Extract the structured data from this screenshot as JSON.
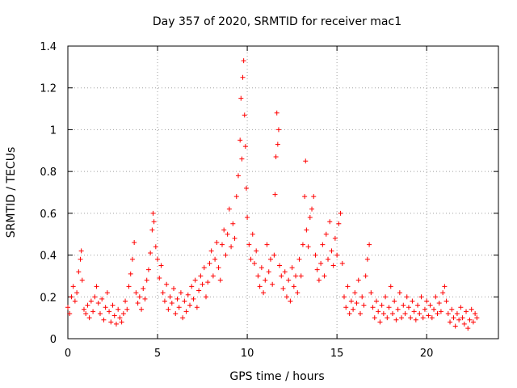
{
  "chart_data": {
    "type": "scatter",
    "title": "Day 357 of 2020, SRMTID for receiver mac1",
    "xlabel": "GPS time / hours",
    "ylabel": "SRMTID / TECUs",
    "xlim": [
      0,
      24
    ],
    "ylim": [
      0,
      1.4
    ],
    "xticks": [
      0,
      5,
      10,
      15,
      20
    ],
    "xtick_labels": [
      "0",
      "5",
      "10",
      "15",
      "20"
    ],
    "yticks": [
      0,
      0.2,
      0.4,
      0.6,
      0.8,
      1.0,
      1.2,
      1.4
    ],
    "ytick_labels": [
      "0",
      "0.2",
      "0.4",
      "0.6",
      "0.8",
      "1",
      "1.2",
      "1.4"
    ],
    "grid": true,
    "marker": "+",
    "color": "#ff0000",
    "series": [
      {
        "name": "mac1",
        "points": [
          [
            0.0,
            0.15
          ],
          [
            0.1,
            0.12
          ],
          [
            0.2,
            0.2
          ],
          [
            0.3,
            0.25
          ],
          [
            0.4,
            0.18
          ],
          [
            0.5,
            0.22
          ],
          [
            0.6,
            0.32
          ],
          [
            0.7,
            0.38
          ],
          [
            0.75,
            0.42
          ],
          [
            0.8,
            0.28
          ],
          [
            0.9,
            0.14
          ],
          [
            1.0,
            0.12
          ],
          [
            1.1,
            0.16
          ],
          [
            1.2,
            0.1
          ],
          [
            1.3,
            0.18
          ],
          [
            1.4,
            0.13
          ],
          [
            1.5,
            0.2
          ],
          [
            1.6,
            0.25
          ],
          [
            1.7,
            0.17
          ],
          [
            1.8,
            0.12
          ],
          [
            1.9,
            0.19
          ],
          [
            2.0,
            0.09
          ],
          [
            2.1,
            0.15
          ],
          [
            2.2,
            0.22
          ],
          [
            2.3,
            0.13
          ],
          [
            2.4,
            0.08
          ],
          [
            2.5,
            0.16
          ],
          [
            2.6,
            0.11
          ],
          [
            2.7,
            0.07
          ],
          [
            2.8,
            0.14
          ],
          [
            2.9,
            0.1
          ],
          [
            3.0,
            0.08
          ],
          [
            3.1,
            0.12
          ],
          [
            3.2,
            0.18
          ],
          [
            3.3,
            0.14
          ],
          [
            3.4,
            0.25
          ],
          [
            3.5,
            0.31
          ],
          [
            3.6,
            0.38
          ],
          [
            3.7,
            0.46
          ],
          [
            3.8,
            0.22
          ],
          [
            3.9,
            0.17
          ],
          [
            4.0,
            0.2
          ],
          [
            4.1,
            0.14
          ],
          [
            4.2,
            0.24
          ],
          [
            4.3,
            0.19
          ],
          [
            4.4,
            0.28
          ],
          [
            4.5,
            0.33
          ],
          [
            4.6,
            0.41
          ],
          [
            4.7,
            0.52
          ],
          [
            4.75,
            0.6
          ],
          [
            4.8,
            0.56
          ],
          [
            4.9,
            0.44
          ],
          [
            5.0,
            0.38
          ],
          [
            5.1,
            0.29
          ],
          [
            5.2,
            0.35
          ],
          [
            5.3,
            0.22
          ],
          [
            5.4,
            0.18
          ],
          [
            5.5,
            0.26
          ],
          [
            5.6,
            0.14
          ],
          [
            5.7,
            0.2
          ],
          [
            5.8,
            0.17
          ],
          [
            5.9,
            0.24
          ],
          [
            6.0,
            0.12
          ],
          [
            6.1,
            0.19
          ],
          [
            6.2,
            0.15
          ],
          [
            6.3,
            0.22
          ],
          [
            6.4,
            0.1
          ],
          [
            6.5,
            0.18
          ],
          [
            6.6,
            0.13
          ],
          [
            6.7,
            0.21
          ],
          [
            6.8,
            0.16
          ],
          [
            6.9,
            0.25
          ],
          [
            7.0,
            0.19
          ],
          [
            7.1,
            0.28
          ],
          [
            7.2,
            0.15
          ],
          [
            7.3,
            0.23
          ],
          [
            7.4,
            0.3
          ],
          [
            7.5,
            0.26
          ],
          [
            7.6,
            0.34
          ],
          [
            7.7,
            0.2
          ],
          [
            7.8,
            0.27
          ],
          [
            7.9,
            0.36
          ],
          [
            8.0,
            0.42
          ],
          [
            8.1,
            0.3
          ],
          [
            8.2,
            0.38
          ],
          [
            8.3,
            0.46
          ],
          [
            8.4,
            0.34
          ],
          [
            8.5,
            0.28
          ],
          [
            8.6,
            0.45
          ],
          [
            8.7,
            0.52
          ],
          [
            8.8,
            0.4
          ],
          [
            8.9,
            0.5
          ],
          [
            9.0,
            0.62
          ],
          [
            9.1,
            0.44
          ],
          [
            9.2,
            0.55
          ],
          [
            9.3,
            0.48
          ],
          [
            9.4,
            0.68
          ],
          [
            9.5,
            0.78
          ],
          [
            9.6,
            0.95
          ],
          [
            9.65,
            1.15
          ],
          [
            9.7,
            0.86
          ],
          [
            9.75,
            1.25
          ],
          [
            9.8,
            1.33
          ],
          [
            9.85,
            1.07
          ],
          [
            9.9,
            0.92
          ],
          [
            9.95,
            0.72
          ],
          [
            10.0,
            0.58
          ],
          [
            10.1,
            0.45
          ],
          [
            10.2,
            0.38
          ],
          [
            10.3,
            0.5
          ],
          [
            10.4,
            0.36
          ],
          [
            10.5,
            0.42
          ],
          [
            10.6,
            0.3
          ],
          [
            10.7,
            0.25
          ],
          [
            10.8,
            0.34
          ],
          [
            10.9,
            0.22
          ],
          [
            11.0,
            0.28
          ],
          [
            11.1,
            0.45
          ],
          [
            11.2,
            0.32
          ],
          [
            11.3,
            0.38
          ],
          [
            11.4,
            0.26
          ],
          [
            11.5,
            0.4
          ],
          [
            11.55,
            0.69
          ],
          [
            11.6,
            0.87
          ],
          [
            11.65,
            1.08
          ],
          [
            11.7,
            0.93
          ],
          [
            11.75,
            1.0
          ],
          [
            11.8,
            0.35
          ],
          [
            11.9,
            0.3
          ],
          [
            12.0,
            0.24
          ],
          [
            12.1,
            0.32
          ],
          [
            12.2,
            0.2
          ],
          [
            12.3,
            0.28
          ],
          [
            12.4,
            0.18
          ],
          [
            12.5,
            0.34
          ],
          [
            12.6,
            0.25
          ],
          [
            12.7,
            0.3
          ],
          [
            12.8,
            0.22
          ],
          [
            12.9,
            0.38
          ],
          [
            13.0,
            0.3
          ],
          [
            13.1,
            0.45
          ],
          [
            13.2,
            0.68
          ],
          [
            13.25,
            0.85
          ],
          [
            13.3,
            0.52
          ],
          [
            13.4,
            0.44
          ],
          [
            13.5,
            0.58
          ],
          [
            13.6,
            0.62
          ],
          [
            13.7,
            0.68
          ],
          [
            13.8,
            0.4
          ],
          [
            13.9,
            0.33
          ],
          [
            14.0,
            0.28
          ],
          [
            14.1,
            0.36
          ],
          [
            14.2,
            0.45
          ],
          [
            14.3,
            0.3
          ],
          [
            14.4,
            0.5
          ],
          [
            14.5,
            0.38
          ],
          [
            14.6,
            0.56
          ],
          [
            14.7,
            0.42
          ],
          [
            14.8,
            0.35
          ],
          [
            14.9,
            0.48
          ],
          [
            15.0,
            0.4
          ],
          [
            15.1,
            0.55
          ],
          [
            15.2,
            0.6
          ],
          [
            15.3,
            0.36
          ],
          [
            15.4,
            0.2
          ],
          [
            15.5,
            0.15
          ],
          [
            15.6,
            0.25
          ],
          [
            15.7,
            0.12
          ],
          [
            15.8,
            0.18
          ],
          [
            15.9,
            0.14
          ],
          [
            16.0,
            0.22
          ],
          [
            16.1,
            0.17
          ],
          [
            16.2,
            0.28
          ],
          [
            16.3,
            0.12
          ],
          [
            16.4,
            0.2
          ],
          [
            16.5,
            0.16
          ],
          [
            16.6,
            0.3
          ],
          [
            16.7,
            0.38
          ],
          [
            16.8,
            0.45
          ],
          [
            16.9,
            0.22
          ],
          [
            17.0,
            0.15
          ],
          [
            17.1,
            0.1
          ],
          [
            17.2,
            0.18
          ],
          [
            17.3,
            0.13
          ],
          [
            17.4,
            0.08
          ],
          [
            17.5,
            0.16
          ],
          [
            17.6,
            0.12
          ],
          [
            17.7,
            0.2
          ],
          [
            17.8,
            0.1
          ],
          [
            17.9,
            0.15
          ],
          [
            18.0,
            0.25
          ],
          [
            18.1,
            0.12
          ],
          [
            18.2,
            0.18
          ],
          [
            18.3,
            0.09
          ],
          [
            18.4,
            0.14
          ],
          [
            18.5,
            0.22
          ],
          [
            18.6,
            0.1
          ],
          [
            18.7,
            0.16
          ],
          [
            18.8,
            0.12
          ],
          [
            18.9,
            0.2
          ],
          [
            19.0,
            0.15
          ],
          [
            19.1,
            0.1
          ],
          [
            19.2,
            0.18
          ],
          [
            19.3,
            0.13
          ],
          [
            19.4,
            0.09
          ],
          [
            19.5,
            0.16
          ],
          [
            19.6,
            0.12
          ],
          [
            19.7,
            0.2
          ],
          [
            19.8,
            0.1
          ],
          [
            19.9,
            0.14
          ],
          [
            20.0,
            0.18
          ],
          [
            20.1,
            0.11
          ],
          [
            20.2,
            0.16
          ],
          [
            20.3,
            0.1
          ],
          [
            20.4,
            0.14
          ],
          [
            20.5,
            0.2
          ],
          [
            20.6,
            0.12
          ],
          [
            20.7,
            0.17
          ],
          [
            20.8,
            0.13
          ],
          [
            20.9,
            0.22
          ],
          [
            21.0,
            0.25
          ],
          [
            21.1,
            0.18
          ],
          [
            21.2,
            0.12
          ],
          [
            21.3,
            0.08
          ],
          [
            21.4,
            0.14
          ],
          [
            21.5,
            0.1
          ],
          [
            21.6,
            0.06
          ],
          [
            21.7,
            0.12
          ],
          [
            21.8,
            0.09
          ],
          [
            21.9,
            0.15
          ],
          [
            22.0,
            0.1
          ],
          [
            22.1,
            0.07
          ],
          [
            22.2,
            0.13
          ],
          [
            22.3,
            0.05
          ],
          [
            22.4,
            0.09
          ],
          [
            22.5,
            0.14
          ],
          [
            22.6,
            0.08
          ],
          [
            22.7,
            0.12
          ],
          [
            22.8,
            0.1
          ]
        ]
      }
    ]
  }
}
